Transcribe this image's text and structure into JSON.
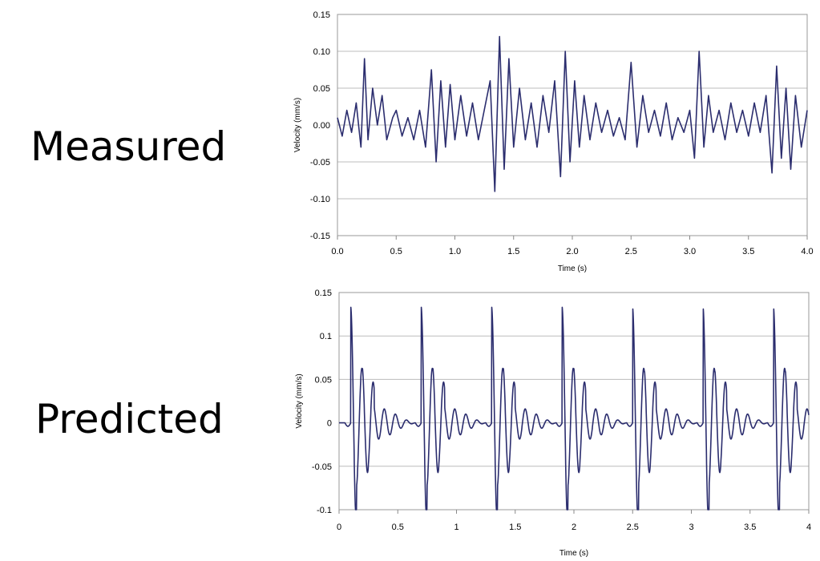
{
  "labels": {
    "top": "Measured",
    "bottom": "Predicted"
  },
  "chart_data": [
    {
      "type": "line",
      "name": "Measured",
      "xlabel": "Time (s)",
      "ylabel": "Velocity (mm/s)",
      "xlim": [
        0,
        4
      ],
      "ylim": [
        -0.15,
        0.15
      ],
      "xticks": [
        0,
        0.5,
        1,
        1.5,
        2,
        2.5,
        3,
        3.5,
        4
      ],
      "xtick_labels": [
        "0.0",
        "0.5",
        "1.0",
        "1.5",
        "2.0",
        "2.5",
        "3.0",
        "3.5",
        "4.0"
      ],
      "yticks": [
        0.15,
        0.1,
        0.05,
        0,
        -0.05,
        -0.1,
        -0.15
      ],
      "ytick_labels": [
        "0.15",
        "0.10",
        "0.05",
        "0.00",
        "-0.05",
        "-0.10",
        "-0.15"
      ],
      "grid": true,
      "line_color": "#2b2d6e",
      "x": [
        0,
        0.04,
        0.08,
        0.12,
        0.16,
        0.2,
        0.23,
        0.26,
        0.3,
        0.34,
        0.38,
        0.42,
        0.47,
        0.5,
        0.55,
        0.6,
        0.65,
        0.7,
        0.75,
        0.8,
        0.84,
        0.88,
        0.92,
        0.96,
        1.0,
        1.05,
        1.1,
        1.15,
        1.2,
        1.25,
        1.3,
        1.34,
        1.38,
        1.42,
        1.46,
        1.5,
        1.55,
        1.6,
        1.65,
        1.7,
        1.75,
        1.8,
        1.85,
        1.9,
        1.94,
        1.98,
        2.02,
        2.06,
        2.1,
        2.15,
        2.2,
        2.25,
        2.3,
        2.35,
        2.4,
        2.45,
        2.5,
        2.55,
        2.6,
        2.65,
        2.7,
        2.75,
        2.8,
        2.85,
        2.9,
        2.95,
        3.0,
        3.04,
        3.08,
        3.12,
        3.16,
        3.2,
        3.25,
        3.3,
        3.35,
        3.4,
        3.45,
        3.5,
        3.55,
        3.6,
        3.65,
        3.7,
        3.74,
        3.78,
        3.82,
        3.86,
        3.9,
        3.95,
        4.0
      ],
      "y": [
        0.01,
        -0.015,
        0.02,
        -0.01,
        0.03,
        -0.03,
        0.09,
        -0.02,
        0.05,
        0.0,
        0.04,
        -0.02,
        0.01,
        0.02,
        -0.015,
        0.01,
        -0.02,
        0.02,
        -0.03,
        0.075,
        -0.05,
        0.06,
        -0.03,
        0.055,
        -0.02,
        0.04,
        -0.015,
        0.03,
        -0.02,
        0.02,
        0.06,
        -0.09,
        0.12,
        -0.06,
        0.09,
        -0.03,
        0.05,
        -0.02,
        0.03,
        -0.03,
        0.04,
        -0.01,
        0.06,
        -0.07,
        0.1,
        -0.05,
        0.06,
        -0.03,
        0.04,
        -0.02,
        0.03,
        -0.01,
        0.02,
        -0.015,
        0.01,
        -0.02,
        0.085,
        -0.03,
        0.04,
        -0.01,
        0.02,
        -0.015,
        0.03,
        -0.02,
        0.01,
        -0.01,
        0.02,
        -0.045,
        0.1,
        -0.03,
        0.04,
        -0.01,
        0.02,
        -0.02,
        0.03,
        -0.01,
        0.02,
        -0.015,
        0.03,
        -0.01,
        0.04,
        -0.065,
        0.08,
        -0.045,
        0.05,
        -0.06,
        0.04,
        -0.03,
        0.02
      ]
    },
    {
      "type": "line",
      "name": "Predicted",
      "xlabel": "Time (s)",
      "ylabel": "Velocity (mm/s)",
      "xlim": [
        0,
        4
      ],
      "ylim": [
        -0.1,
        0.15
      ],
      "xticks": [
        0,
        0.5,
        1,
        1.5,
        2,
        2.5,
        3,
        3.5,
        4
      ],
      "xtick_labels": [
        "0",
        "0.5",
        "1",
        "1.5",
        "2",
        "2.5",
        "3",
        "3.5",
        "4"
      ],
      "yticks": [
        0.15,
        0.1,
        0.05,
        0,
        -0.05,
        -0.1
      ],
      "ytick_labels": [
        "0.15",
        "0.1",
        "0.05",
        "0",
        "-0.05",
        "-0.1"
      ],
      "grid": true,
      "line_color": "#2b2d6e",
      "pulse_period_s": 0.6,
      "pulse_times_s": [
        0.1,
        0.7,
        1.3,
        1.9,
        2.5,
        3.1,
        3.7
      ],
      "pulse_peak": 0.133,
      "pulse_trough": -0.085,
      "secondary_peak": 0.065,
      "secondary_trough": -0.05
    }
  ]
}
